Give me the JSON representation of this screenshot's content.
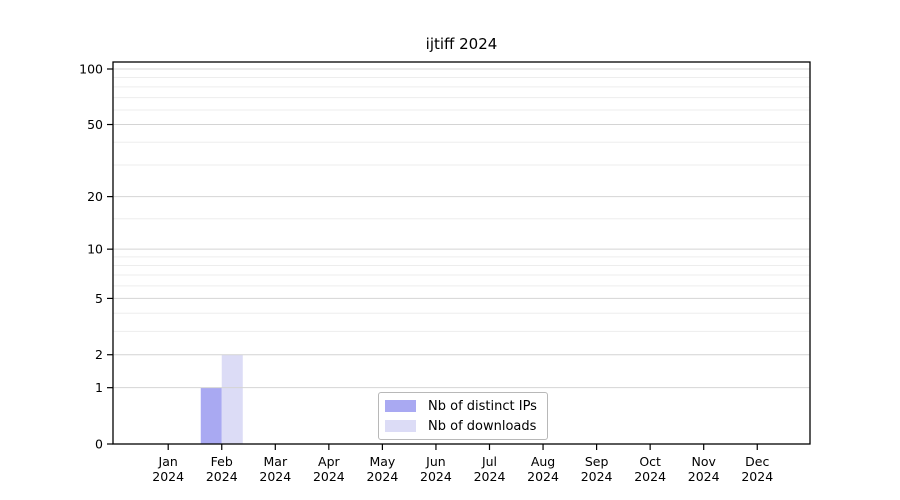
{
  "title": "ijtiff 2024",
  "chart_data": {
    "type": "bar",
    "title": "ijtiff 2024",
    "yscale": "log1p",
    "ylim": [
      0,
      110
    ],
    "yticks": [
      0,
      1,
      2,
      5,
      10,
      20,
      50,
      100
    ],
    "minor_yticks": [
      3,
      4,
      6,
      7,
      8,
      9,
      15,
      30,
      40,
      60,
      70,
      80,
      90
    ],
    "grid": true,
    "categories": [
      "Jan",
      "Feb",
      "Mar",
      "Apr",
      "May",
      "Jun",
      "Jul",
      "Aug",
      "Sep",
      "Oct",
      "Nov",
      "Dec"
    ],
    "category_year": "2024",
    "series": [
      {
        "name": "Nb of distinct IPs",
        "color": "#a9a9f2",
        "values": [
          0,
          1,
          0,
          0,
          0,
          0,
          0,
          0,
          0,
          0,
          0,
          0
        ]
      },
      {
        "name": "Nb of downloads",
        "color": "#dcdcf6",
        "values": [
          0,
          2,
          0,
          0,
          0,
          0,
          0,
          0,
          0,
          0,
          0,
          0
        ]
      }
    ],
    "legend_position": "lower center",
    "colors": {
      "axis": "#000000",
      "text": "#000000",
      "grid_major": "#d4d4d4",
      "grid_minor": "#ededed",
      "legend_border": "#b8b8b8",
      "background": "#ffffff"
    }
  }
}
